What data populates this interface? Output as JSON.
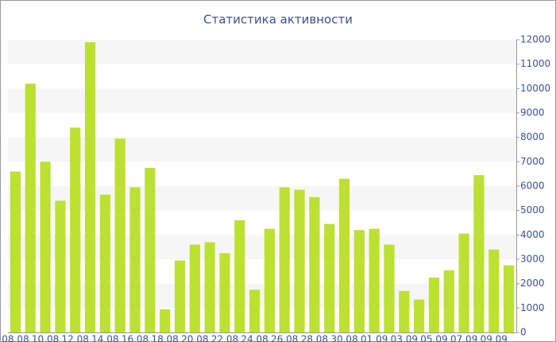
{
  "chart_data": {
    "type": "bar",
    "title": "Статистика активности",
    "categories": [
      "08.08",
      null,
      "10.08",
      null,
      "12.08",
      null,
      "14.08",
      null,
      "16.08",
      null,
      "18.08",
      null,
      "20.08",
      null,
      "22.08",
      null,
      "24.08",
      null,
      "26.08",
      null,
      "28.08",
      null,
      "30.08",
      null,
      "01.09",
      null,
      "03.09",
      null,
      "05.09",
      null,
      "07.09",
      null,
      "09.09",
      null
    ],
    "values": [
      6600,
      10200,
      7000,
      5400,
      8400,
      11900,
      5650,
      7950,
      5950,
      6750,
      950,
      2950,
      3600,
      3700,
      3250,
      4600,
      1750,
      4250,
      5950,
      5850,
      5550,
      4450,
      6300,
      4200,
      4250,
      3600,
      1700,
      1350,
      2250,
      2550,
      4050,
      6450,
      3400,
      2750
    ],
    "color": "#bde032",
    "ylim": [
      0,
      12000
    ],
    "yticks": [
      0,
      1000,
      2000,
      3000,
      4000,
      5000,
      6000,
      7000,
      8000,
      9000,
      10000,
      11000,
      12000
    ],
    "grid": true
  }
}
